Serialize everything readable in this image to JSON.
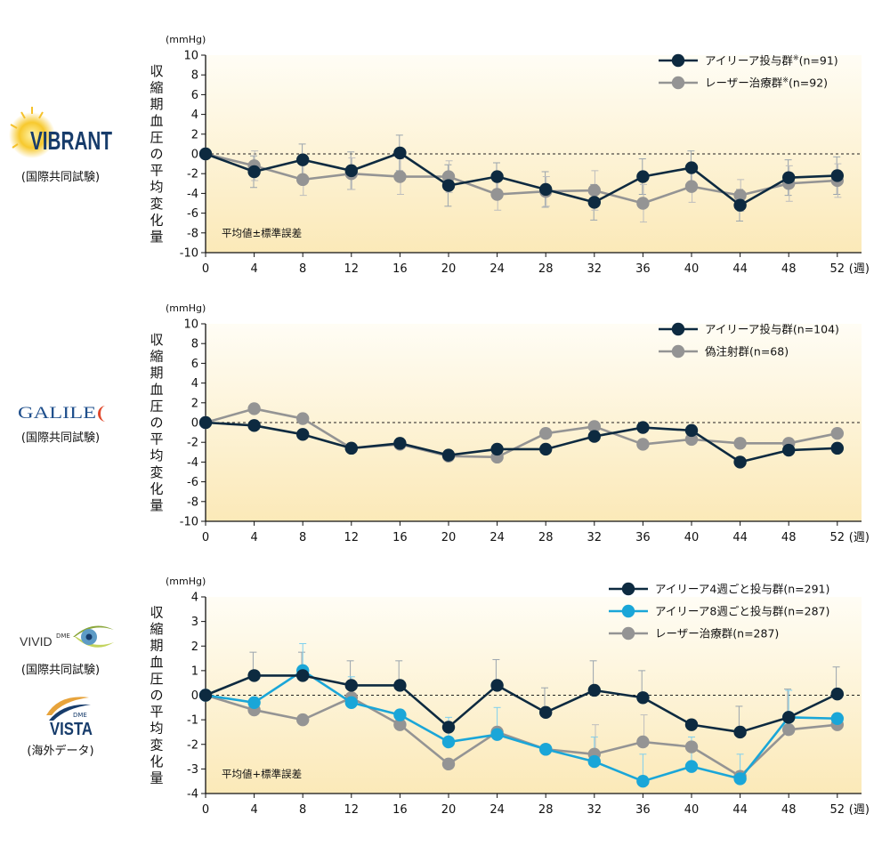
{
  "ylabel": "収縮期血圧の平均変化量",
  "chart_data": [
    {
      "type": "line",
      "study": {
        "logo_text": "VIBRANT",
        "caption": "(国際共同試験)"
      },
      "yunit": "(mmHg)",
      "xunit": "(週)",
      "ylim": [
        -10,
        10
      ],
      "yticks": [
        10,
        8,
        6,
        4,
        2,
        0,
        -2,
        -4,
        -6,
        -8,
        -10
      ],
      "x": [
        0,
        4,
        8,
        12,
        16,
        20,
        24,
        28,
        32,
        36,
        40,
        44,
        48,
        52
      ],
      "note": "平均値±標準誤差",
      "series": [
        {
          "name": "アイリーア投与群",
          "mark": "※",
          "n": "(n=91)",
          "color": "#0d2a40",
          "values": [
            0,
            -1.8,
            -0.6,
            -1.7,
            0.1,
            -3.2,
            -2.3,
            -3.6,
            -4.9,
            -2.3,
            -1.4,
            -5.2,
            -2.4,
            -2.2
          ],
          "err": [
            0,
            1.6,
            1.6,
            1.9,
            1.8,
            2.1,
            1.4,
            1.8,
            1.8,
            1.8,
            1.7,
            1.6,
            1.8,
            1.9
          ]
        },
        {
          "name": "レーザー治療群",
          "mark": "※",
          "n": "(n=92)",
          "color": "#949494",
          "values": [
            0,
            -1.2,
            -2.6,
            -2.0,
            -2.3,
            -2.3,
            -4.1,
            -3.8,
            -3.7,
            -5.0,
            -3.3,
            -4.2,
            -3.0,
            -2.7
          ],
          "err": [
            0,
            1.5,
            1.6,
            1.6,
            1.8,
            1.6,
            1.6,
            1.5,
            2.0,
            1.9,
            1.6,
            1.6,
            1.8,
            1.7
          ]
        }
      ]
    },
    {
      "type": "line",
      "study": {
        "logo_text": "GALILEO",
        "caption": "(国際共同試験)"
      },
      "yunit": "(mmHg)",
      "xunit": "(週)",
      "ylim": [
        -10,
        10
      ],
      "yticks": [
        10,
        8,
        6,
        4,
        2,
        0,
        -2,
        -4,
        -6,
        -8,
        -10
      ],
      "x": [
        0,
        4,
        8,
        12,
        16,
        20,
        24,
        28,
        32,
        36,
        40,
        44,
        48,
        52
      ],
      "series": [
        {
          "name": "アイリーア投与群",
          "mark": "",
          "n": "(n=104)",
          "color": "#0d2a40",
          "values": [
            0,
            -0.3,
            -1.2,
            -2.6,
            -2.1,
            -3.3,
            -2.7,
            -2.7,
            -1.4,
            -0.5,
            -0.8,
            -4.0,
            -2.8,
            -2.6
          ]
        },
        {
          "name": "偽注射群",
          "mark": "",
          "n": "(n=68)",
          "color": "#949494",
          "values": [
            0,
            1.4,
            0.4,
            -2.6,
            -2.2,
            -3.4,
            -3.5,
            -1.1,
            -0.4,
            -2.2,
            -1.7,
            -2.1,
            -2.1,
            -1.1
          ]
        }
      ]
    },
    {
      "type": "line",
      "study": {
        "logo_text": "VIVID",
        "logo_sup": "DME",
        "caption": "(国際共同試験)",
        "logo2_text": "VISTA",
        "logo2_sup": "DME",
        "caption2": "(海外データ)"
      },
      "yunit": "(mmHg)",
      "xunit": "(週)",
      "ylim": [
        -4,
        4
      ],
      "yticks": [
        4,
        3,
        2,
        1,
        0,
        -1,
        -2,
        -3,
        -4
      ],
      "x": [
        0,
        4,
        8,
        12,
        16,
        20,
        24,
        28,
        32,
        36,
        40,
        44,
        48,
        52
      ],
      "note": "平均値+標準誤差",
      "series": [
        {
          "name": "アイリーア4週ごと投与群",
          "mark": "",
          "n": "(n=291)",
          "color": "#0d2a40",
          "values": [
            0,
            0.8,
            0.8,
            0.4,
            0.4,
            -1.3,
            0.4,
            -0.7,
            0.2,
            -0.1,
            -1.2,
            -1.5,
            -0.9,
            0.05
          ],
          "err": [
            0,
            0.95,
            0.95,
            1.0,
            1.0,
            0.0,
            1.05,
            1.0,
            1.2,
            1.1,
            0.0,
            1.05,
            1.15,
            1.1
          ]
        },
        {
          "name": "アイリーア8週ごと投与群",
          "mark": "",
          "n": "(n=287)",
          "color": "#1aa6d8",
          "values": [
            0,
            -0.3,
            1.0,
            -0.3,
            -0.8,
            -1.9,
            -1.6,
            -2.2,
            -2.7,
            -3.5,
            -2.9,
            -3.4,
            -0.9,
            -0.95
          ],
          "err": [
            0,
            0.0,
            1.1,
            1.05,
            0.0,
            1.0,
            1.1,
            0.0,
            1.0,
            1.1,
            1.2,
            1.0,
            1.1,
            0.0
          ]
        },
        {
          "name": "レーザー治療群",
          "mark": "",
          "n": "(n=287)",
          "color": "#949494",
          "values": [
            0,
            -0.6,
            -1.0,
            -0.1,
            -1.2,
            -2.8,
            -1.5,
            -2.2,
            -2.4,
            -1.9,
            -2.1,
            -3.3,
            -1.4,
            -1.2
          ],
          "err": [
            0,
            0.0,
            0.0,
            0.0,
            0.0,
            0.0,
            0.0,
            0.0,
            1.2,
            1.1,
            0.0,
            0.0,
            0.0,
            0.0
          ]
        }
      ]
    }
  ]
}
